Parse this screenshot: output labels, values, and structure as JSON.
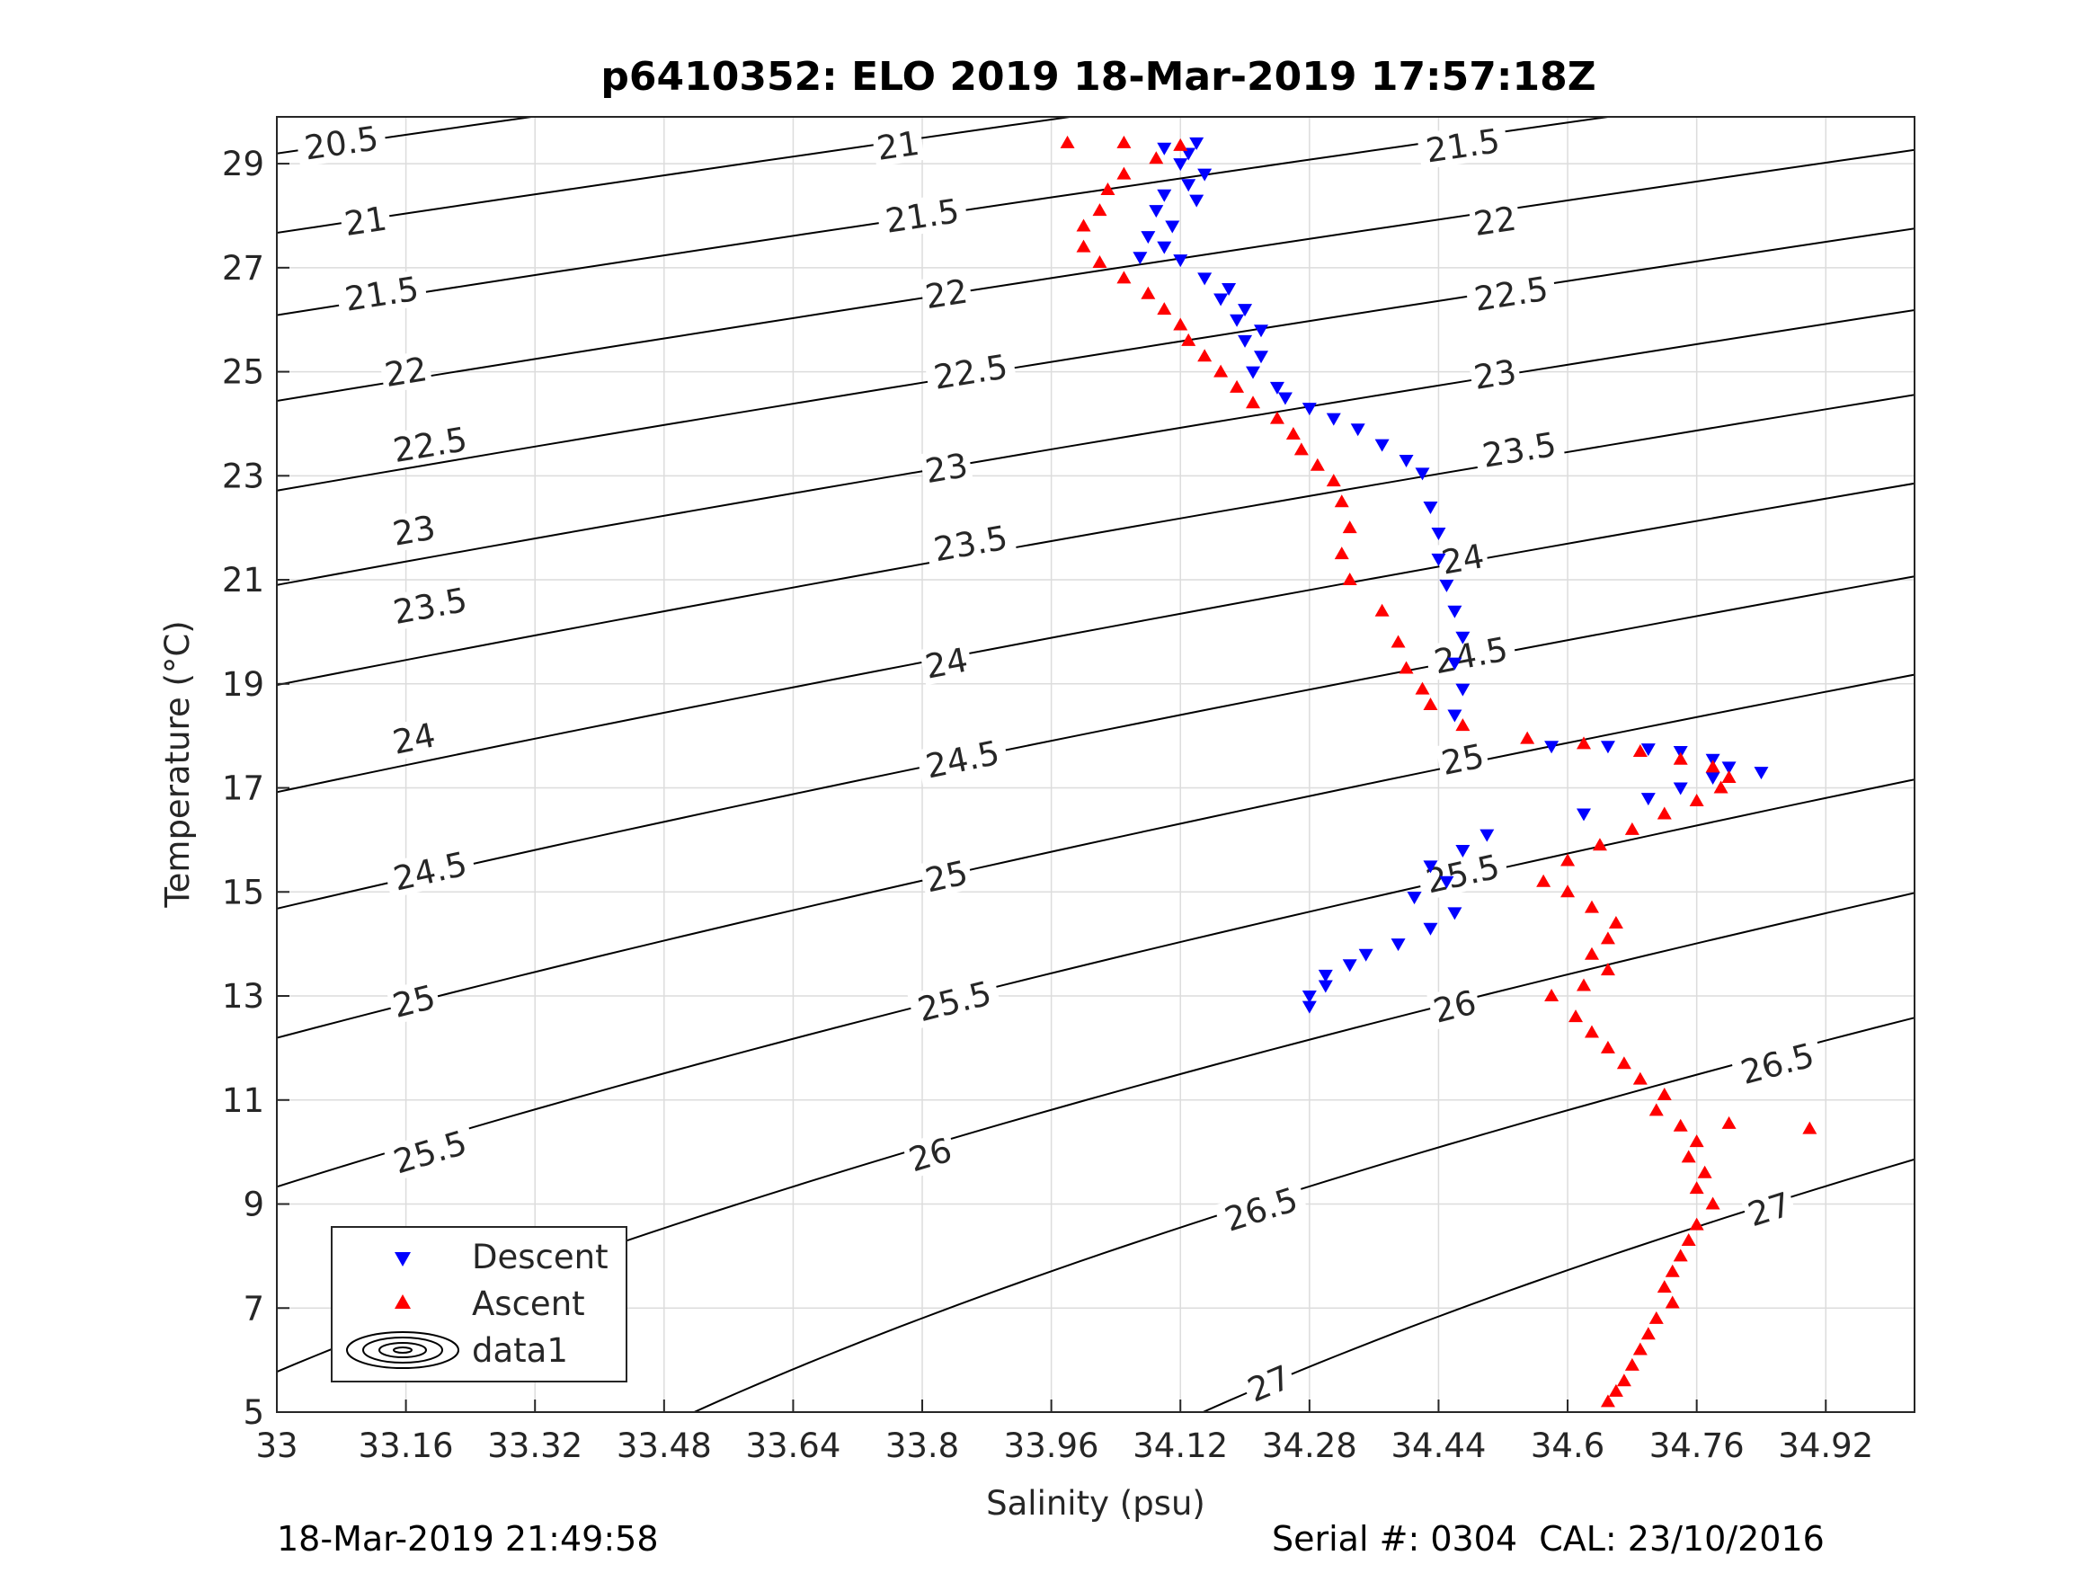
{
  "chart_data": {
    "type": "scatter",
    "title": "p6410352: ELO 2019 18-Mar-2019 17:57:18Z",
    "xlabel": "Salinity (psu)",
    "ylabel": "Temperature (°C)",
    "xlim": [
      33,
      35.03
    ],
    "ylim": [
      5,
      29.9
    ],
    "xticks": [
      "33",
      "33.16",
      "33.32",
      "33.48",
      "33.64",
      "33.8",
      "33.96",
      "34.12",
      "34.28",
      "34.44",
      "34.6",
      "34.76",
      "34.92"
    ],
    "yticks": [
      "5",
      "7",
      "9",
      "11",
      "13",
      "15",
      "17",
      "19",
      "21",
      "23",
      "25",
      "27",
      "29"
    ],
    "grid": true,
    "legend": {
      "location": "bottom-left",
      "entries": [
        "Descent",
        "Ascent",
        "data1"
      ]
    },
    "density_contours": {
      "levels": [
        "20.5",
        "21",
        "21.5",
        "22",
        "22.5",
        "23",
        "23.5",
        "24",
        "24.5",
        "25",
        "25.5",
        "26",
        "26.5",
        "27"
      ],
      "label_positions": [
        {
          "level": "20.5",
          "x": 33.08,
          "y": 29.4
        },
        {
          "level": "21",
          "x": 33.11,
          "y": 27.9
        },
        {
          "level": "21",
          "x": 33.77,
          "y": 29.35
        },
        {
          "level": "21.5",
          "x": 33.13,
          "y": 26.5
        },
        {
          "level": "21.5",
          "x": 33.8,
          "y": 28.0
        },
        {
          "level": "21.5",
          "x": 34.47,
          "y": 29.35
        },
        {
          "level": "22",
          "x": 33.16,
          "y": 25.0
        },
        {
          "level": "22",
          "x": 33.83,
          "y": 26.5
        },
        {
          "level": "22",
          "x": 34.51,
          "y": 27.9
        },
        {
          "level": "22.5",
          "x": 33.19,
          "y": 23.6
        },
        {
          "level": "22.5",
          "x": 33.86,
          "y": 25.0
        },
        {
          "level": "22.5",
          "x": 34.53,
          "y": 26.5
        },
        {
          "level": "23",
          "x": 33.17,
          "y": 21.95
        },
        {
          "level": "23",
          "x": 33.83,
          "y": 23.15
        },
        {
          "level": "23",
          "x": 34.51,
          "y": 24.95
        },
        {
          "level": "23.5",
          "x": 33.19,
          "y": 20.5
        },
        {
          "level": "23.5",
          "x": 33.86,
          "y": 21.7
        },
        {
          "level": "23.5",
          "x": 34.54,
          "y": 23.5
        },
        {
          "level": "24",
          "x": 33.17,
          "y": 17.95
        },
        {
          "level": "24",
          "x": 33.83,
          "y": 19.4
        },
        {
          "level": "24",
          "x": 34.47,
          "y": 21.4
        },
        {
          "level": "24.5",
          "x": 33.19,
          "y": 15.4
        },
        {
          "level": "24.5",
          "x": 33.85,
          "y": 17.55
        },
        {
          "level": "24.5",
          "x": 34.48,
          "y": 19.55
        },
        {
          "level": "25",
          "x": 33.17,
          "y": 12.9
        },
        {
          "level": "25",
          "x": 33.83,
          "y": 15.3
        },
        {
          "level": "25",
          "x": 34.47,
          "y": 17.55
        },
        {
          "level": "25.5",
          "x": 33.19,
          "y": 10.0
        },
        {
          "level": "25.5",
          "x": 33.84,
          "y": 12.9
        },
        {
          "level": "25.5",
          "x": 34.47,
          "y": 15.35
        },
        {
          "level": "26",
          "x": 33.15,
          "y": 6.85
        },
        {
          "level": "26",
          "x": 33.81,
          "y": 9.95
        },
        {
          "level": "26",
          "x": 34.46,
          "y": 12.8
        },
        {
          "level": "26.5",
          "x": 34.22,
          "y": 8.9
        },
        {
          "level": "26.5",
          "x": 34.86,
          "y": 11.7
        },
        {
          "level": "27",
          "x": 34.23,
          "y": 5.55
        },
        {
          "level": "27",
          "x": 34.85,
          "y": 8.9
        }
      ]
    },
    "series": [
      {
        "name": "Descent",
        "color": "#0000ff",
        "marker": "triangle-down",
        "points": [
          [
            34.14,
            29.4
          ],
          [
            34.1,
            29.3
          ],
          [
            34.13,
            29.2
          ],
          [
            34.12,
            29.0
          ],
          [
            34.15,
            28.8
          ],
          [
            34.13,
            28.6
          ],
          [
            34.1,
            28.4
          ],
          [
            34.14,
            28.3
          ],
          [
            34.09,
            28.1
          ],
          [
            34.11,
            27.8
          ],
          [
            34.08,
            27.6
          ],
          [
            34.1,
            27.4
          ],
          [
            34.07,
            27.2
          ],
          [
            34.12,
            27.15
          ],
          [
            34.15,
            26.8
          ],
          [
            34.18,
            26.6
          ],
          [
            34.17,
            26.4
          ],
          [
            34.2,
            26.2
          ],
          [
            34.19,
            26.0
          ],
          [
            34.22,
            25.8
          ],
          [
            34.2,
            25.6
          ],
          [
            34.22,
            25.3
          ],
          [
            34.21,
            25.0
          ],
          [
            34.24,
            24.7
          ],
          [
            34.25,
            24.5
          ],
          [
            34.28,
            24.3
          ],
          [
            34.31,
            24.1
          ],
          [
            34.34,
            23.9
          ],
          [
            34.37,
            23.6
          ],
          [
            34.4,
            23.3
          ],
          [
            34.42,
            23.05
          ],
          [
            34.43,
            22.4
          ],
          [
            34.44,
            21.9
          ],
          [
            34.44,
            21.4
          ],
          [
            34.45,
            20.9
          ],
          [
            34.46,
            20.4
          ],
          [
            34.47,
            19.9
          ],
          [
            34.46,
            19.4
          ],
          [
            34.47,
            18.9
          ],
          [
            34.46,
            18.4
          ],
          [
            34.58,
            17.8
          ],
          [
            34.65,
            17.8
          ],
          [
            34.7,
            17.75
          ],
          [
            34.74,
            17.7
          ],
          [
            34.78,
            17.55
          ],
          [
            34.8,
            17.4
          ],
          [
            34.84,
            17.3
          ],
          [
            34.78,
            17.2
          ],
          [
            34.74,
            17.0
          ],
          [
            34.7,
            16.8
          ],
          [
            34.62,
            16.5
          ],
          [
            34.5,
            16.1
          ],
          [
            34.47,
            15.8
          ],
          [
            34.43,
            15.5
          ],
          [
            34.45,
            15.2
          ],
          [
            34.41,
            14.9
          ],
          [
            34.46,
            14.6
          ],
          [
            34.43,
            14.3
          ],
          [
            34.39,
            14.0
          ],
          [
            34.35,
            13.8
          ],
          [
            34.33,
            13.6
          ],
          [
            34.3,
            13.4
          ],
          [
            34.3,
            13.2
          ],
          [
            34.28,
            13.0
          ],
          [
            34.28,
            12.8
          ]
        ]
      },
      {
        "name": "Ascent",
        "color": "#ff0000",
        "marker": "triangle-up",
        "points": [
          [
            33.98,
            29.4
          ],
          [
            34.05,
            29.4
          ],
          [
            34.12,
            29.35
          ],
          [
            34.09,
            29.1
          ],
          [
            34.05,
            28.8
          ],
          [
            34.03,
            28.5
          ],
          [
            34.02,
            28.1
          ],
          [
            34.0,
            27.8
          ],
          [
            34.0,
            27.4
          ],
          [
            34.02,
            27.1
          ],
          [
            34.05,
            26.8
          ],
          [
            34.08,
            26.5
          ],
          [
            34.1,
            26.2
          ],
          [
            34.12,
            25.9
          ],
          [
            34.13,
            25.6
          ],
          [
            34.15,
            25.3
          ],
          [
            34.17,
            25.0
          ],
          [
            34.19,
            24.7
          ],
          [
            34.21,
            24.4
          ],
          [
            34.24,
            24.1
          ],
          [
            34.26,
            23.8
          ],
          [
            34.27,
            23.5
          ],
          [
            34.29,
            23.2
          ],
          [
            34.31,
            22.9
          ],
          [
            34.32,
            22.5
          ],
          [
            34.33,
            22.0
          ],
          [
            34.32,
            21.5
          ],
          [
            34.33,
            21.0
          ],
          [
            34.37,
            20.4
          ],
          [
            34.39,
            19.8
          ],
          [
            34.4,
            19.3
          ],
          [
            34.42,
            18.9
          ],
          [
            34.43,
            18.6
          ],
          [
            34.47,
            18.2
          ],
          [
            34.55,
            17.95
          ],
          [
            34.62,
            17.85
          ],
          [
            34.69,
            17.7
          ],
          [
            34.74,
            17.55
          ],
          [
            34.78,
            17.4
          ],
          [
            34.8,
            17.2
          ],
          [
            34.79,
            17.0
          ],
          [
            34.76,
            16.75
          ],
          [
            34.72,
            16.5
          ],
          [
            34.68,
            16.2
          ],
          [
            34.64,
            15.9
          ],
          [
            34.6,
            15.6
          ],
          [
            34.57,
            15.2
          ],
          [
            34.6,
            15.0
          ],
          [
            34.63,
            14.7
          ],
          [
            34.66,
            14.4
          ],
          [
            34.65,
            14.1
          ],
          [
            34.63,
            13.8
          ],
          [
            34.65,
            13.5
          ],
          [
            34.62,
            13.2
          ],
          [
            34.58,
            13.0
          ],
          [
            34.61,
            12.6
          ],
          [
            34.63,
            12.3
          ],
          [
            34.65,
            12.0
          ],
          [
            34.67,
            11.7
          ],
          [
            34.69,
            11.4
          ],
          [
            34.72,
            11.1
          ],
          [
            34.71,
            10.8
          ],
          [
            34.74,
            10.5
          ],
          [
            34.8,
            10.55
          ],
          [
            34.9,
            10.45
          ],
          [
            34.76,
            10.2
          ],
          [
            34.75,
            9.9
          ],
          [
            34.77,
            9.6
          ],
          [
            34.76,
            9.3
          ],
          [
            34.78,
            9.0
          ],
          [
            34.76,
            8.6
          ],
          [
            34.75,
            8.3
          ],
          [
            34.74,
            8.0
          ],
          [
            34.73,
            7.7
          ],
          [
            34.72,
            7.4
          ],
          [
            34.73,
            7.1
          ],
          [
            34.71,
            6.8
          ],
          [
            34.7,
            6.5
          ],
          [
            34.69,
            6.2
          ],
          [
            34.68,
            5.9
          ],
          [
            34.67,
            5.6
          ],
          [
            34.66,
            5.4
          ],
          [
            34.65,
            5.2
          ]
        ]
      }
    ]
  },
  "footer": {
    "left": "18-Mar-2019 21:49:58",
    "right": "Serial #: 0304  CAL: 23/10/2016"
  }
}
